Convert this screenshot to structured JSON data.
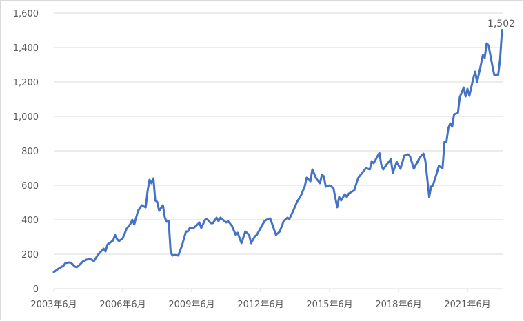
{
  "chart_data": {
    "type": "line",
    "title": "",
    "xlabel": "",
    "ylabel": "",
    "ylim": [
      0,
      1600
    ],
    "y_ticks": [
      "0",
      "200",
      "400",
      "600",
      "800",
      "1,000",
      "1,200",
      "1,400",
      "1,600"
    ],
    "x_ticks": [
      {
        "date": "2003-06",
        "label": "2003年6月"
      },
      {
        "date": "2006-06",
        "label": "2006年6月"
      },
      {
        "date": "2009-06",
        "label": "2009年6月"
      },
      {
        "date": "2012-06",
        "label": "2012年6月"
      },
      {
        "date": "2015-06",
        "label": "2015年6月"
      },
      {
        "date": "2018-06",
        "label": "2018年6月"
      },
      {
        "date": "2021-06",
        "label": "2021年6月"
      }
    ],
    "grid": "horizontal",
    "line_color": "#4472C4",
    "end_label": "1,502",
    "series": [
      {
        "x": [
          "2003-06",
          "2003-09",
          "2003-11",
          "2003-12",
          "2004-02",
          "2004-03",
          "2004-05",
          "2004-06",
          "2004-08",
          "2004-09",
          "2004-11",
          "2005-01",
          "2005-03",
          "2005-05",
          "2005-06",
          "2005-08",
          "2005-09",
          "2005-10",
          "2006-01",
          "2006-02",
          "2006-03",
          "2006-04",
          "2006-06",
          "2006-08",
          "2006-10",
          "2006-11",
          "2006-12",
          "2007-02",
          "2007-04",
          "2007-06",
          "2007-07",
          "2007-08",
          "2007-09",
          "2007-10",
          "2007-11",
          "2007-12",
          "2008-01",
          "2008-03",
          "2008-04",
          "2008-05",
          "2008-06",
          "2008-07",
          "2008-08",
          "2008-09",
          "2008-11",
          "2009-01",
          "2009-03",
          "2009-04",
          "2009-05",
          "2009-07",
          "2009-09",
          "2009-10",
          "2009-11",
          "2010-01",
          "2010-02",
          "2010-04",
          "2010-05",
          "2010-07",
          "2010-08",
          "2010-09",
          "2010-12",
          "2011-01",
          "2011-03",
          "2011-05",
          "2011-06",
          "2011-08",
          "2011-10",
          "2011-12",
          "2012-01",
          "2012-03",
          "2012-04",
          "2012-06",
          "2012-08",
          "2012-09",
          "2012-11",
          "2012-12",
          "2013-02",
          "2013-04",
          "2013-06",
          "2013-08",
          "2013-09",
          "2013-11",
          "2014-01",
          "2014-03",
          "2014-05",
          "2014-06",
          "2014-08",
          "2014-09",
          "2014-11",
          "2015-01",
          "2015-02",
          "2015-03",
          "2015-04",
          "2015-06",
          "2015-08",
          "2015-10",
          "2015-11",
          "2015-12",
          "2016-02",
          "2016-03",
          "2016-04",
          "2016-07",
          "2016-08",
          "2016-09",
          "2016-11",
          "2017-01",
          "2017-03",
          "2017-04",
          "2017-05",
          "2017-08",
          "2017-09",
          "2017-10",
          "2017-12",
          "2018-02",
          "2018-03",
          "2018-05",
          "2018-07",
          "2018-09",
          "2018-11",
          "2018-12",
          "2019-02",
          "2019-05",
          "2019-07",
          "2019-08",
          "2019-10",
          "2019-11",
          "2019-12",
          "2020-02",
          "2020-03",
          "2020-05",
          "2020-06",
          "2020-07",
          "2020-08",
          "2020-09",
          "2020-10",
          "2020-11",
          "2021-01",
          "2021-02",
          "2021-03",
          "2021-04",
          "2021-05",
          "2021-06",
          "2021-07",
          "2021-09",
          "2021-10",
          "2021-11",
          "2022-01",
          "2022-02",
          "2022-03",
          "2022-04",
          "2022-05",
          "2022-07",
          "2022-08",
          "2022-09",
          "2022-10",
          "2022-11",
          "2022-12"
        ],
        "values": [
          96,
          120,
          132,
          148,
          152,
          150,
          128,
          124,
          144,
          156,
          168,
          172,
          160,
          196,
          208,
          232,
          216,
          256,
          280,
          312,
          288,
          276,
          292,
          348,
          376,
          400,
          372,
          452,
          484,
          472,
          568,
          632,
          612,
          640,
          512,
          504,
          452,
          484,
          412,
          388,
          392,
          212,
          192,
          196,
          192,
          252,
          332,
          332,
          352,
          352,
          372,
          384,
          352,
          400,
          404,
          380,
          380,
          412,
          392,
          412,
          384,
          392,
          364,
          312,
          324,
          264,
          332,
          312,
          264,
          304,
          312,
          352,
          392,
          400,
          408,
          376,
          312,
          332,
          392,
          412,
          404,
          452,
          504,
          540,
          592,
          644,
          624,
          692,
          640,
          612,
          660,
          652,
          592,
          600,
          584,
          472,
          532,
          512,
          548,
          532,
          552,
          572,
          612,
          644,
          672,
          700,
          692,
          740,
          728,
          788,
          720,
          692,
          724,
          752,
          672,
          736,
          696,
          772,
          780,
          768,
          696,
          760,
          784,
          744,
          532,
          592,
          600,
          672,
          712,
          700,
          852,
          852,
          932,
          960,
          940,
          1012,
          1020,
          1112,
          1140,
          1168,
          1116,
          1160,
          1120,
          1220,
          1260,
          1200,
          1300,
          1356,
          1340,
          1424,
          1412,
          1292,
          1240,
          1244,
          1240,
          1332,
          1502
        ]
      }
    ]
  }
}
